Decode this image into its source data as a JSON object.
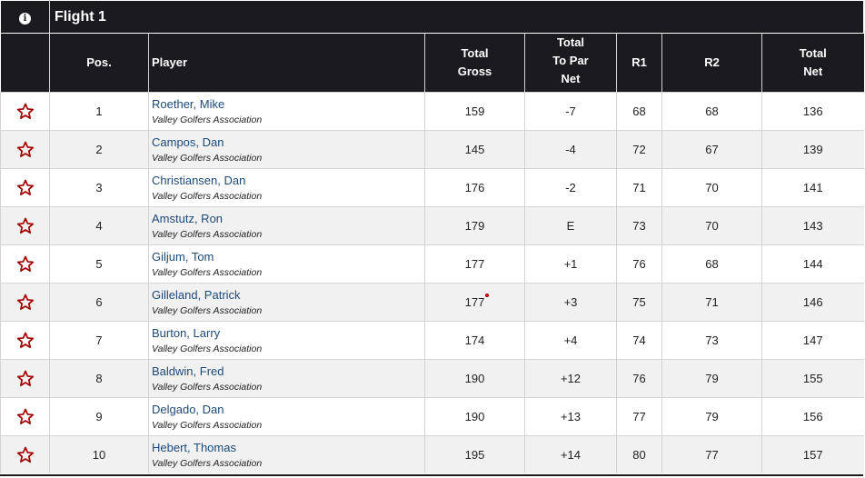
{
  "title": {
    "info_glyph": "i",
    "flight": "Flight 1"
  },
  "columns": {
    "pos": "Pos.",
    "player": "Player",
    "total_gross": [
      "Total",
      "Gross"
    ],
    "total_to_par_net": [
      "Total",
      "To Par",
      "Net"
    ],
    "r1": "R1",
    "r2": "R2",
    "total_net": [
      "Total",
      "Net"
    ]
  },
  "colors": {
    "red": "#b30000",
    "green": "#0a7a0a",
    "purple": "#5a0a78",
    "player_link": "#1d4a79",
    "header_bg": "#1b1b1f"
  },
  "rows": [
    {
      "pos": "1",
      "name": "Roether, Mike",
      "assoc": "Valley Golfers Association",
      "gross": "159",
      "gross_marker": false,
      "topar": "-7",
      "topar_c": "red",
      "r1": "68",
      "r1_c": "red",
      "r2": "68",
      "r2_c": "red",
      "net": "136",
      "net_c": "red"
    },
    {
      "pos": "2",
      "name": "Campos, Dan",
      "assoc": "Valley Golfers Association",
      "gross": "145",
      "gross_marker": false,
      "topar": "-4",
      "topar_c": "red",
      "r1": "72",
      "r1_c": "green",
      "r2": "67",
      "r2_c": "red",
      "net": "139",
      "net_c": "red"
    },
    {
      "pos": "3",
      "name": "Christiansen, Dan",
      "assoc": "Valley Golfers Association",
      "gross": "176",
      "gross_marker": false,
      "topar": "-2",
      "topar_c": "red",
      "r1": "71",
      "r1_c": "red",
      "r2": "70",
      "r2_c": "red",
      "net": "141",
      "net_c": "red"
    },
    {
      "pos": "4",
      "name": "Amstutz, Ron",
      "assoc": "Valley Golfers Association",
      "gross": "179",
      "gross_marker": false,
      "topar": "E",
      "topar_c": "green",
      "r1": "73",
      "r1_c": "purple",
      "r2": "70",
      "r2_c": "red",
      "net": "143",
      "net_c": "green"
    },
    {
      "pos": "5",
      "name": "Giljum, Tom",
      "assoc": "Valley Golfers Association",
      "gross": "177",
      "gross_marker": false,
      "topar": "+1",
      "topar_c": "purple",
      "r1": "76",
      "r1_c": "purple",
      "r2": "68",
      "r2_c": "red",
      "net": "144",
      "net_c": "purple"
    },
    {
      "pos": "6",
      "name": "Gilleland, Patrick",
      "assoc": "Valley Golfers Association",
      "gross": "177",
      "gross_marker": true,
      "topar": "+3",
      "topar_c": "purple",
      "r1": "75",
      "r1_c": "purple",
      "r2": "71",
      "r2_c": "green",
      "net": "146",
      "net_c": "purple"
    },
    {
      "pos": "7",
      "name": "Burton, Larry",
      "assoc": "Valley Golfers Association",
      "gross": "174",
      "gross_marker": false,
      "topar": "+4",
      "topar_c": "purple",
      "r1": "74",
      "r1_c": "purple",
      "r2": "73",
      "r2_c": "purple",
      "net": "147",
      "net_c": "purple"
    },
    {
      "pos": "8",
      "name": "Baldwin, Fred",
      "assoc": "Valley Golfers Association",
      "gross": "190",
      "gross_marker": false,
      "topar": "+12",
      "topar_c": "purple",
      "r1": "76",
      "r1_c": "purple",
      "r2": "79",
      "r2_c": "purple",
      "net": "155",
      "net_c": "purple"
    },
    {
      "pos": "9",
      "name": "Delgado, Dan",
      "assoc": "Valley Golfers Association",
      "gross": "190",
      "gross_marker": false,
      "topar": "+13",
      "topar_c": "purple",
      "r1": "77",
      "r1_c": "purple",
      "r2": "79",
      "r2_c": "purple",
      "net": "156",
      "net_c": "purple"
    },
    {
      "pos": "10",
      "name": "Hebert, Thomas",
      "assoc": "Valley Golfers Association",
      "gross": "195",
      "gross_marker": false,
      "topar": "+14",
      "topar_c": "purple",
      "r1": "80",
      "r1_c": "purple",
      "r2": "77",
      "r2_c": "purple",
      "net": "157",
      "net_c": "purple"
    }
  ],
  "icons": {
    "row_action": "star-outline-icon",
    "info": "info-icon"
  }
}
